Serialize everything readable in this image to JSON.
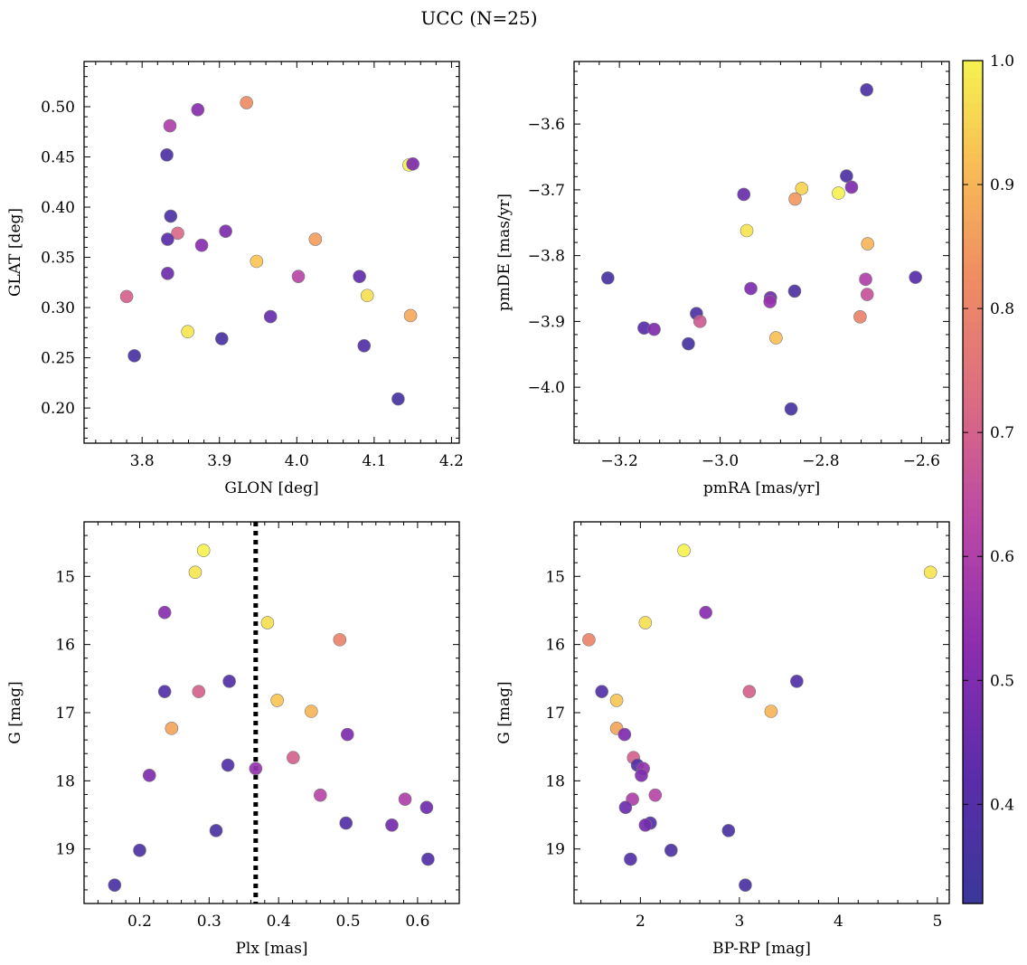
{
  "title": "UCC (N=25)",
  "colorbar": {
    "range": [
      0.32,
      1.0
    ],
    "ticks": [
      0.4,
      0.5,
      0.6,
      0.7,
      0.8,
      0.9,
      1.0
    ],
    "tick_labels": [
      "0.4",
      "0.5",
      "0.6",
      "0.7",
      "0.8",
      "0.9",
      "1.0"
    ],
    "colormap": "plasma"
  },
  "chart_data": [
    {
      "type": "scatter",
      "xlabel": "GLON [deg]",
      "ylabel": "GLAT [deg]",
      "xlim": [
        3.725,
        4.21
      ],
      "ylim": [
        0.165,
        0.545
      ],
      "xticks": [
        3.8,
        3.9,
        4.0,
        4.1,
        4.2
      ],
      "xtick_labels": [
        "3.8",
        "3.9",
        "4.0",
        "4.1",
        "4.2"
      ],
      "yticks": [
        0.2,
        0.25,
        0.3,
        0.35,
        0.4,
        0.45,
        0.5
      ],
      "ytick_labels": [
        "0.20",
        "0.25",
        "0.30",
        "0.35",
        "0.40",
        "0.45",
        "0.50"
      ],
      "y_inverted": false,
      "points": [
        {
          "x": 3.935,
          "y": 0.504,
          "c": 0.82
        },
        {
          "x": 3.872,
          "y": 0.497,
          "c": 0.52
        },
        {
          "x": 3.836,
          "y": 0.481,
          "c": 0.6
        },
        {
          "x": 3.832,
          "y": 0.452,
          "c": 0.38
        },
        {
          "x": 4.145,
          "y": 0.442,
          "c": 1.0
        },
        {
          "x": 4.15,
          "y": 0.443,
          "c": 0.5
        },
        {
          "x": 3.837,
          "y": 0.391,
          "c": 0.38
        },
        {
          "x": 3.908,
          "y": 0.376,
          "c": 0.5
        },
        {
          "x": 3.846,
          "y": 0.374,
          "c": 0.72
        },
        {
          "x": 3.833,
          "y": 0.368,
          "c": 0.42
        },
        {
          "x": 4.024,
          "y": 0.368,
          "c": 0.86
        },
        {
          "x": 3.877,
          "y": 0.362,
          "c": 0.52
        },
        {
          "x": 3.948,
          "y": 0.346,
          "c": 0.93
        },
        {
          "x": 3.833,
          "y": 0.334,
          "c": 0.46
        },
        {
          "x": 4.002,
          "y": 0.331,
          "c": 0.62
        },
        {
          "x": 4.081,
          "y": 0.331,
          "c": 0.44
        },
        {
          "x": 3.78,
          "y": 0.311,
          "c": 0.7
        },
        {
          "x": 4.091,
          "y": 0.312,
          "c": 0.97
        },
        {
          "x": 4.147,
          "y": 0.292,
          "c": 0.88
        },
        {
          "x": 3.966,
          "y": 0.291,
          "c": 0.45
        },
        {
          "x": 3.859,
          "y": 0.276,
          "c": 0.98
        },
        {
          "x": 3.903,
          "y": 0.269,
          "c": 0.37
        },
        {
          "x": 4.087,
          "y": 0.262,
          "c": 0.4
        },
        {
          "x": 3.79,
          "y": 0.252,
          "c": 0.37
        },
        {
          "x": 4.131,
          "y": 0.209,
          "c": 0.36
        }
      ]
    },
    {
      "type": "scatter",
      "xlabel": "pmRA [mas/yr]",
      "ylabel": "pmDE [mas/yr]",
      "xlim": [
        -3.29,
        -2.545
      ],
      "ylim": [
        -4.085,
        -3.505
      ],
      "xticks": [
        -3.2,
        -3.0,
        -2.8,
        -2.6
      ],
      "xtick_labels": [
        "−3.2",
        "−3.0",
        "−2.8",
        "−2.6"
      ],
      "yticks": [
        -4.0,
        -3.9,
        -3.8,
        -3.7,
        -3.6
      ],
      "ytick_labels": [
        "−4.0",
        "−3.9",
        "−3.8",
        "−3.7",
        "−3.6"
      ],
      "y_inverted": false,
      "points": [
        {
          "x": -2.709,
          "y": -3.548,
          "c": 0.38
        },
        {
          "x": -2.749,
          "y": -3.679,
          "c": 0.38
        },
        {
          "x": -2.739,
          "y": -3.696,
          "c": 0.5
        },
        {
          "x": -2.838,
          "y": -3.698,
          "c": 0.95
        },
        {
          "x": -2.765,
          "y": -3.705,
          "c": 1.0
        },
        {
          "x": -2.953,
          "y": -3.707,
          "c": 0.45
        },
        {
          "x": -2.851,
          "y": -3.714,
          "c": 0.85
        },
        {
          "x": -2.947,
          "y": -3.762,
          "c": 0.98
        },
        {
          "x": -2.707,
          "y": -3.782,
          "c": 0.9
        },
        {
          "x": -3.223,
          "y": -3.834,
          "c": 0.37
        },
        {
          "x": -2.612,
          "y": -3.833,
          "c": 0.42
        },
        {
          "x": -2.711,
          "y": -3.836,
          "c": 0.6
        },
        {
          "x": -2.939,
          "y": -3.85,
          "c": 0.5
        },
        {
          "x": -2.852,
          "y": -3.854,
          "c": 0.38
        },
        {
          "x": -2.708,
          "y": -3.859,
          "c": 0.66
        },
        {
          "x": -2.9,
          "y": -3.864,
          "c": 0.46
        },
        {
          "x": -2.901,
          "y": -3.87,
          "c": 0.55
        },
        {
          "x": -3.047,
          "y": -3.888,
          "c": 0.38
        },
        {
          "x": -2.722,
          "y": -3.893,
          "c": 0.8
        },
        {
          "x": -3.04,
          "y": -3.9,
          "c": 0.68
        },
        {
          "x": -3.151,
          "y": -3.91,
          "c": 0.42
        },
        {
          "x": -3.131,
          "y": -3.912,
          "c": 0.5
        },
        {
          "x": -2.889,
          "y": -3.925,
          "c": 0.92
        },
        {
          "x": -3.063,
          "y": -3.934,
          "c": 0.36
        },
        {
          "x": -2.859,
          "y": -4.033,
          "c": 0.36
        }
      ]
    },
    {
      "type": "scatter",
      "xlabel": "Plx [mas]",
      "ylabel": "G [mag]",
      "xlim": [
        0.12,
        0.66
      ],
      "ylim": [
        14.2,
        19.8
      ],
      "xticks": [
        0.2,
        0.3,
        0.4,
        0.5,
        0.6
      ],
      "xtick_labels": [
        "0.2",
        "0.3",
        "0.4",
        "0.5",
        "0.6"
      ],
      "yticks": [
        15,
        16,
        17,
        18,
        19
      ],
      "ytick_labels": [
        "15",
        "16",
        "17",
        "18",
        "19"
      ],
      "y_inverted": true,
      "vline": 0.367,
      "points": [
        {
          "x": 0.292,
          "y": 14.62,
          "c": 1.0
        },
        {
          "x": 0.28,
          "y": 14.94,
          "c": 0.98
        },
        {
          "x": 0.236,
          "y": 15.53,
          "c": 0.52
        },
        {
          "x": 0.384,
          "y": 15.68,
          "c": 0.97
        },
        {
          "x": 0.488,
          "y": 15.93,
          "c": 0.8
        },
        {
          "x": 0.329,
          "y": 16.54,
          "c": 0.4
        },
        {
          "x": 0.236,
          "y": 16.69,
          "c": 0.4
        },
        {
          "x": 0.285,
          "y": 16.69,
          "c": 0.7
        },
        {
          "x": 0.398,
          "y": 16.82,
          "c": 0.93
        },
        {
          "x": 0.447,
          "y": 16.98,
          "c": 0.9
        },
        {
          "x": 0.246,
          "y": 17.23,
          "c": 0.87
        },
        {
          "x": 0.499,
          "y": 17.32,
          "c": 0.5
        },
        {
          "x": 0.421,
          "y": 17.66,
          "c": 0.7
        },
        {
          "x": 0.327,
          "y": 17.77,
          "c": 0.4
        },
        {
          "x": 0.367,
          "y": 17.82,
          "c": 0.55
        },
        {
          "x": 0.214,
          "y": 17.92,
          "c": 0.5
        },
        {
          "x": 0.46,
          "y": 18.21,
          "c": 0.62
        },
        {
          "x": 0.582,
          "y": 18.27,
          "c": 0.6
        },
        {
          "x": 0.613,
          "y": 18.39,
          "c": 0.46
        },
        {
          "x": 0.497,
          "y": 18.62,
          "c": 0.4
        },
        {
          "x": 0.563,
          "y": 18.65,
          "c": 0.48
        },
        {
          "x": 0.31,
          "y": 18.73,
          "c": 0.37
        },
        {
          "x": 0.2,
          "y": 19.02,
          "c": 0.38
        },
        {
          "x": 0.615,
          "y": 19.15,
          "c": 0.4
        },
        {
          "x": 0.164,
          "y": 19.53,
          "c": 0.37
        }
      ]
    },
    {
      "type": "scatter",
      "xlabel": "BP-RP [mag]",
      "ylabel": "G [mag]",
      "xlim": [
        1.33,
        5.12
      ],
      "ylim": [
        14.2,
        19.8
      ],
      "xticks": [
        2,
        3,
        4,
        5
      ],
      "xtick_labels": [
        "2",
        "3",
        "4",
        "5"
      ],
      "yticks": [
        15,
        16,
        17,
        18,
        19
      ],
      "ytick_labels": [
        "15",
        "16",
        "17",
        "18",
        "19"
      ],
      "y_inverted": true,
      "points": [
        {
          "x": 2.44,
          "y": 14.62,
          "c": 1.0
        },
        {
          "x": 4.93,
          "y": 14.94,
          "c": 0.98
        },
        {
          "x": 2.66,
          "y": 15.53,
          "c": 0.52
        },
        {
          "x": 2.05,
          "y": 15.68,
          "c": 0.97
        },
        {
          "x": 1.48,
          "y": 15.93,
          "c": 0.8
        },
        {
          "x": 3.58,
          "y": 16.54,
          "c": 0.4
        },
        {
          "x": 1.61,
          "y": 16.69,
          "c": 0.4
        },
        {
          "x": 3.1,
          "y": 16.69,
          "c": 0.7
        },
        {
          "x": 1.76,
          "y": 16.82,
          "c": 0.93
        },
        {
          "x": 3.32,
          "y": 16.98,
          "c": 0.9
        },
        {
          "x": 1.76,
          "y": 17.23,
          "c": 0.87
        },
        {
          "x": 1.84,
          "y": 17.32,
          "c": 0.5
        },
        {
          "x": 1.93,
          "y": 17.66,
          "c": 0.7
        },
        {
          "x": 1.97,
          "y": 17.77,
          "c": 0.4
        },
        {
          "x": 2.03,
          "y": 17.82,
          "c": 0.55
        },
        {
          "x": 2.01,
          "y": 17.92,
          "c": 0.5
        },
        {
          "x": 2.15,
          "y": 18.21,
          "c": 0.62
        },
        {
          "x": 1.92,
          "y": 18.27,
          "c": 0.6
        },
        {
          "x": 1.85,
          "y": 18.39,
          "c": 0.46
        },
        {
          "x": 2.1,
          "y": 18.62,
          "c": 0.4
        },
        {
          "x": 2.05,
          "y": 18.65,
          "c": 0.48
        },
        {
          "x": 2.89,
          "y": 18.73,
          "c": 0.37
        },
        {
          "x": 2.31,
          "y": 19.02,
          "c": 0.38
        },
        {
          "x": 1.9,
          "y": 19.15,
          "c": 0.4
        },
        {
          "x": 3.06,
          "y": 19.53,
          "c": 0.37
        }
      ]
    }
  ]
}
